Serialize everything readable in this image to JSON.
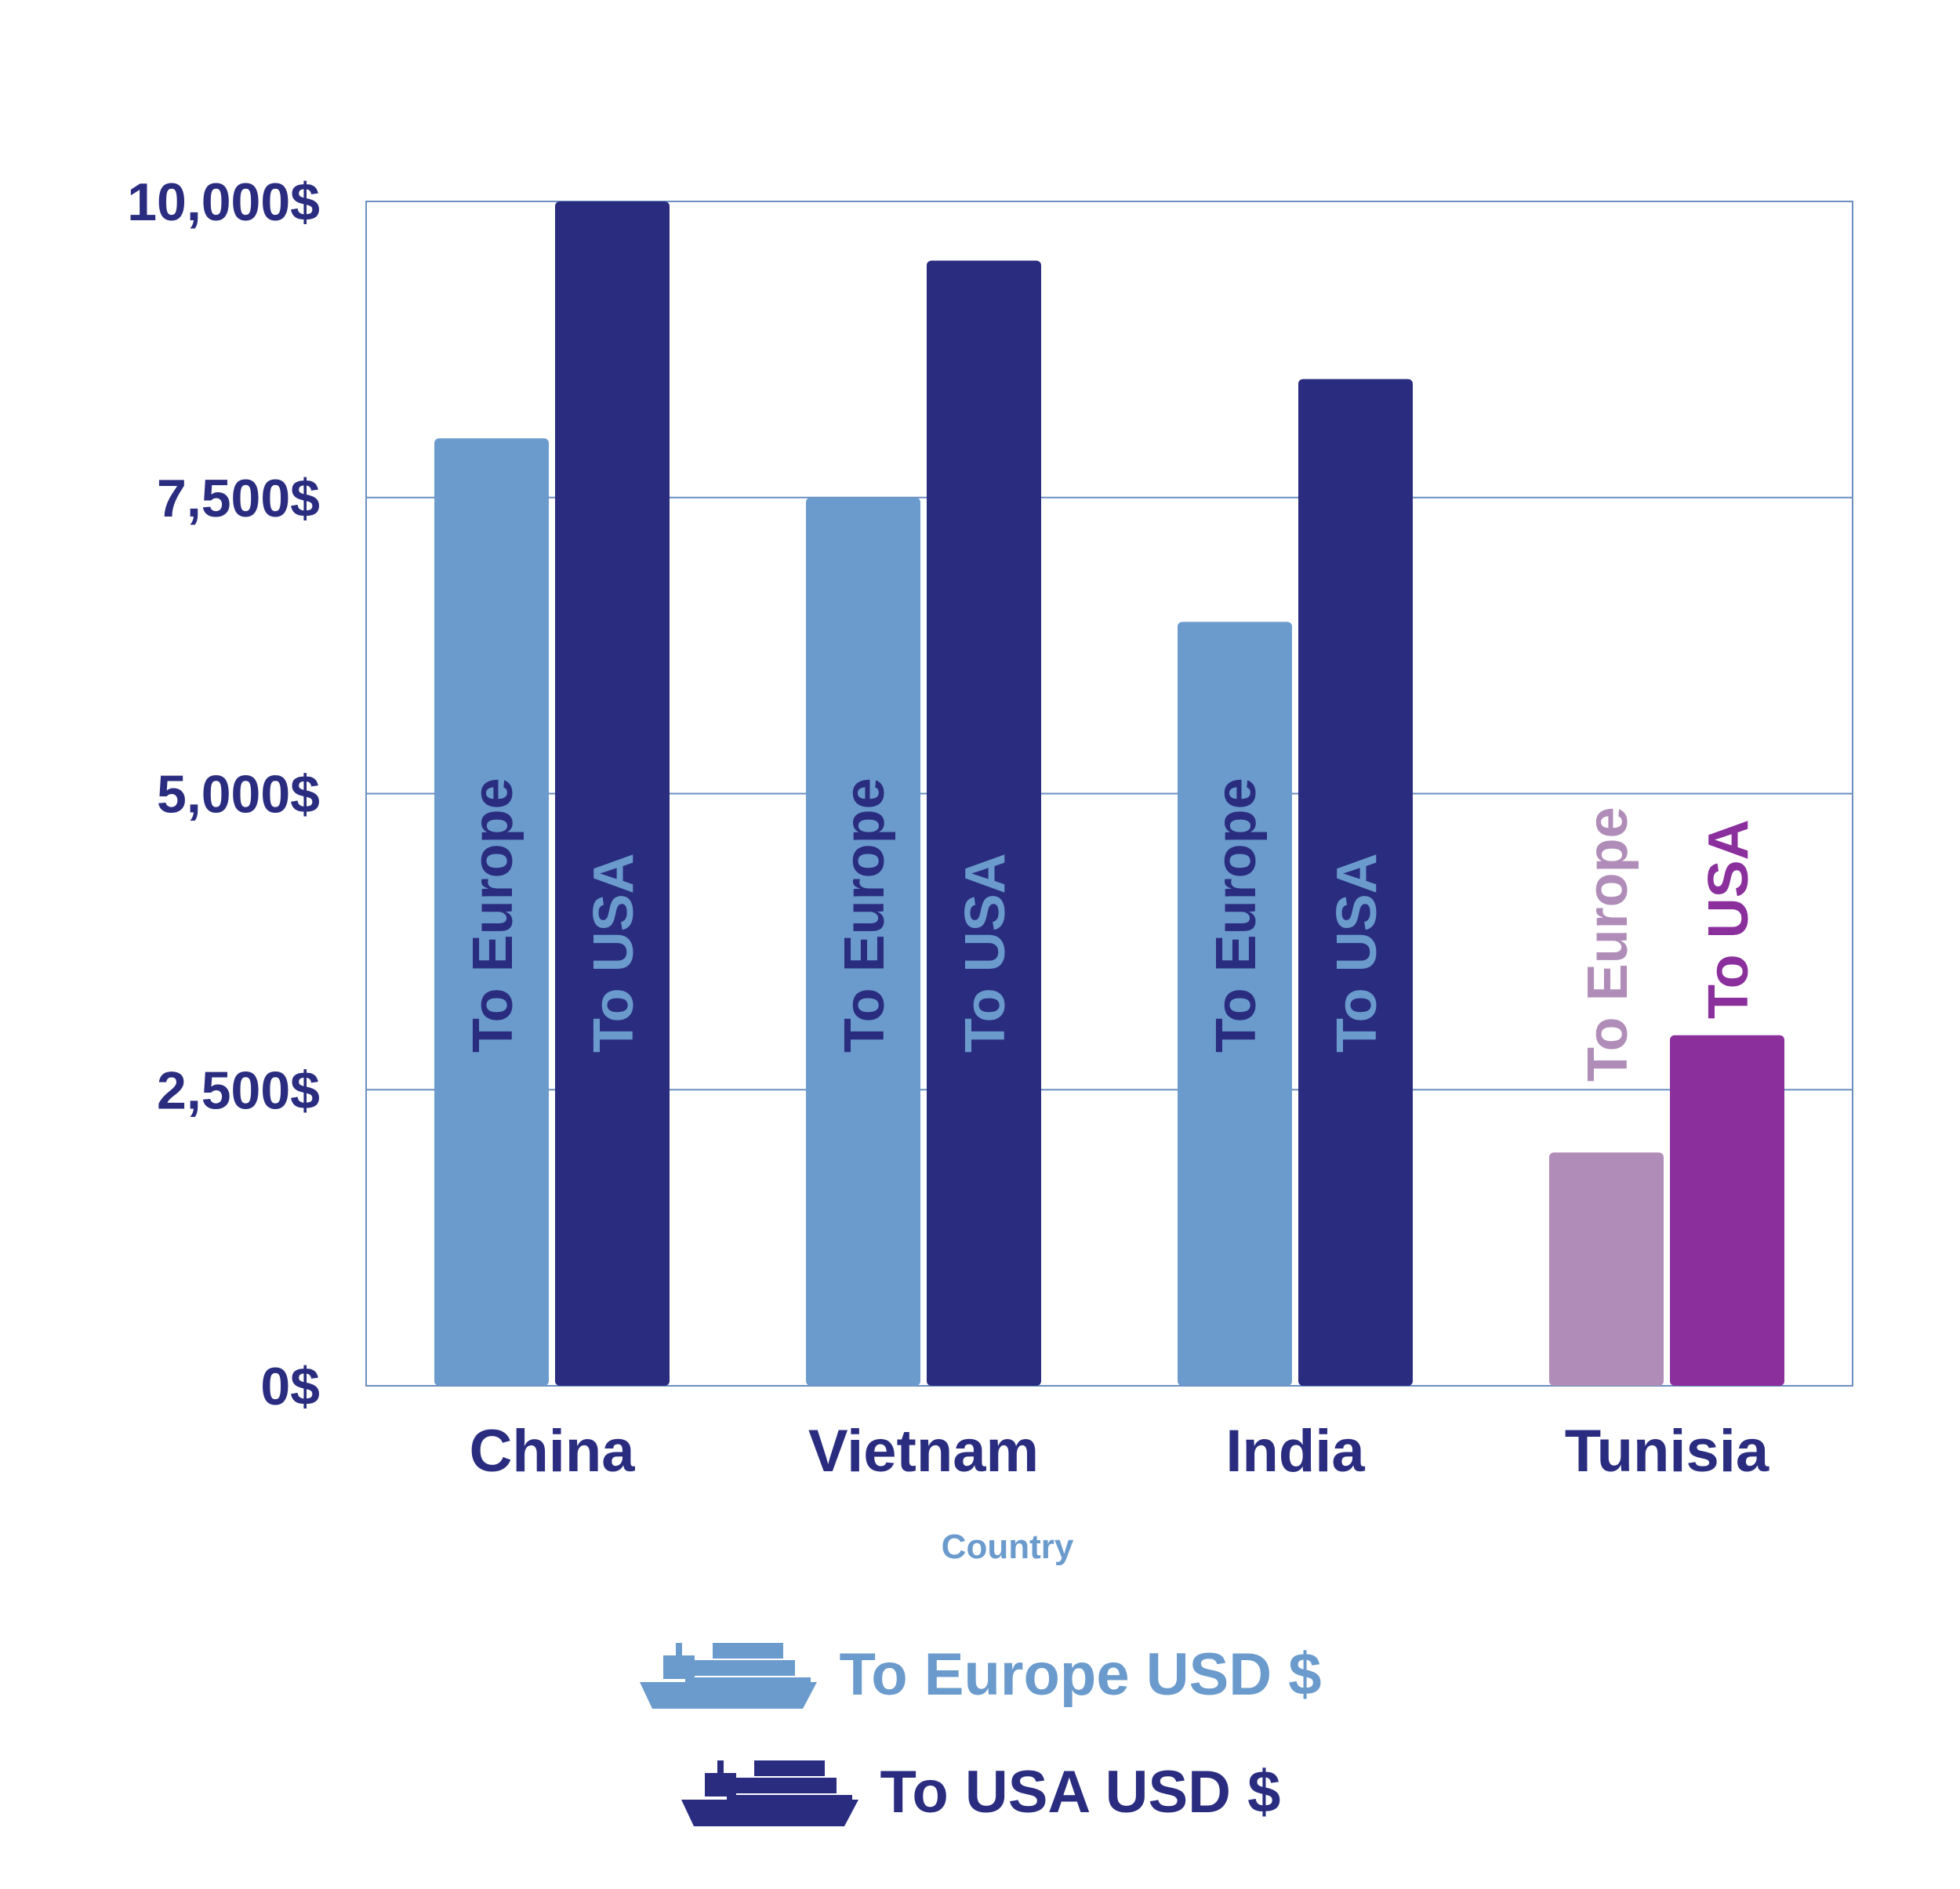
{
  "chart_data": {
    "type": "bar",
    "categories": [
      "China",
      "Vietnam",
      "India",
      "Tunisia"
    ],
    "series": [
      {
        "name": "To Europe",
        "values": [
          8000,
          7500,
          6450,
          1970
        ]
      },
      {
        "name": "To USA",
        "values": [
          10000,
          9500,
          8500,
          2960
        ]
      }
    ],
    "y_ticks": [
      "0$",
      "2,500$",
      "5,000$",
      "7,500$",
      "10,000$"
    ],
    "ylim": [
      0,
      10000
    ],
    "xlabel": "Country",
    "ylabel": "",
    "grid": true,
    "colors": {
      "europe": "#6b9bcc",
      "usa": "#2a2d7f",
      "tunisia_europe": "#b08db8",
      "tunisia_usa": "#8a2f9c",
      "axis_text": "#2a2d7f",
      "grid": "#6b8fc0"
    }
  },
  "legend": {
    "items": [
      {
        "label": "To Europe USD $",
        "icon": "cargo-ship-icon",
        "color": "#6b9bcc"
      },
      {
        "label": "To USA USD $",
        "icon": "cargo-ship-icon",
        "color": "#2a2d7f"
      }
    ]
  }
}
